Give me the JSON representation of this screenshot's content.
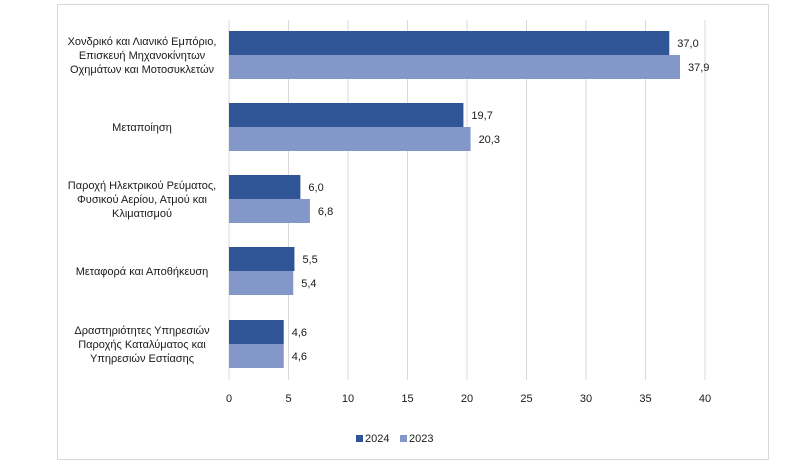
{
  "chart_data": {
    "type": "bar",
    "orientation": "horizontal",
    "categories": [
      [
        "Χονδρικό και Λιανικό Εμπόριο,",
        "Επισκευή Μηχανοκίνητων",
        "Οχημάτων και Μοτοσυκλετών"
      ],
      [
        "Μεταποίηση"
      ],
      [
        "Παροχή Ηλεκτρικού Ρεύματος,",
        "Φυσικού Αερίου, Ατμού και",
        "Κλιματισμού"
      ],
      [
        "Μεταφορά και Αποθήκευση"
      ],
      [
        "Δραστηριότητες Υπηρεσιών",
        "Παροχής Καταλύματος και",
        "Υπηρεσιών Εστίασης"
      ]
    ],
    "series": [
      {
        "name": "2024",
        "color": "#2f5597",
        "values": [
          37.0,
          19.7,
          6.0,
          5.5,
          4.6
        ],
        "labels": [
          "37,0",
          "19,7",
          "6,0",
          "5,5",
          "4,6"
        ]
      },
      {
        "name": "2023",
        "color": "#8497c9",
        "values": [
          37.9,
          20.3,
          6.8,
          5.4,
          4.6
        ],
        "labels": [
          "37,9",
          "20,3",
          "6,8",
          "5,4",
          "4,6"
        ]
      }
    ],
    "xlim": [
      0,
      40
    ],
    "xticks": [
      0,
      5,
      10,
      15,
      20,
      25,
      30,
      35,
      40
    ],
    "grid": "vertical",
    "legend": "bottom"
  }
}
